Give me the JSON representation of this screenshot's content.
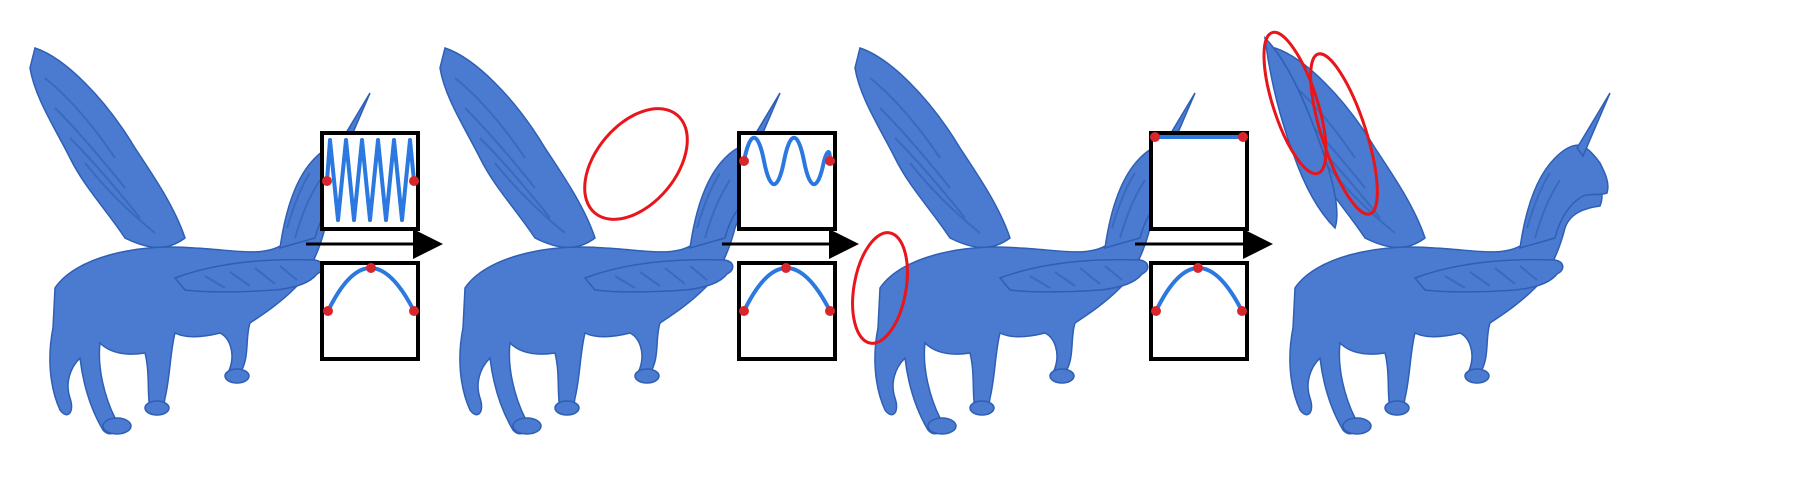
{
  "figure": {
    "stages": [
      {
        "model": "pegasus-mesh-original"
      },
      {
        "model": "pegasus-mesh-step-1"
      },
      {
        "model": "pegasus-mesh-step-2"
      },
      {
        "model": "pegasus-mesh-step-3"
      }
    ],
    "transitions": [
      {
        "top_plot": "high-frequency-zigzag",
        "bottom_plot": "parabola-arch",
        "highlight": "neck-region"
      },
      {
        "top_plot": "mid-frequency-wave",
        "bottom_plot": "parabola-arch",
        "highlight": "tail-region"
      },
      {
        "top_plot": "flat-line",
        "bottom_plot": "parabola-arch",
        "highlight": "wing-regions"
      }
    ]
  },
  "colors": {
    "mesh": "#4a7bd0",
    "mesh_dark": "#2f5fb4",
    "curve": "#2b79e0",
    "control_point": "#d8272c",
    "highlight": "#e8151b",
    "frame": "#000000"
  }
}
